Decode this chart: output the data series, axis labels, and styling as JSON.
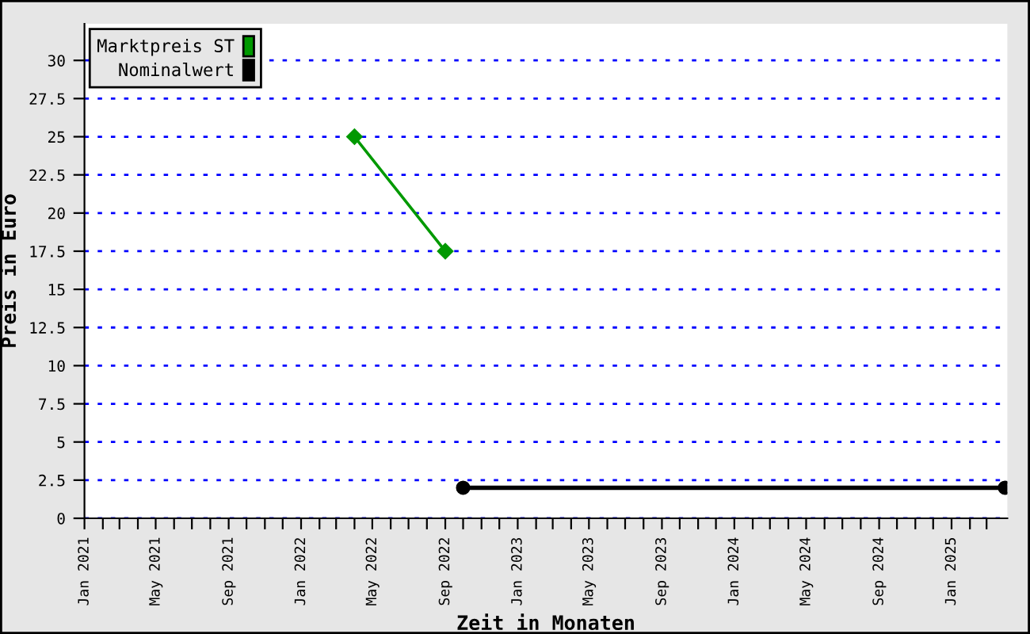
{
  "chart_data": {
    "type": "line",
    "xlabel": "Zeit in Monaten",
    "ylabel": "Preis in Euro",
    "series": [
      {
        "name": "Marktpreis ST",
        "color": "#009900",
        "x": [
          "2022-04-01",
          "2022-09-01"
        ],
        "values": [
          25,
          17.5
        ],
        "marker": "diamond"
      },
      {
        "name": "Nominalwert",
        "color": "#000000",
        "x": [
          "2022-10-01",
          "2025-04-01"
        ],
        "values": [
          2,
          2
        ],
        "marker": "circle"
      }
    ],
    "xlim": [
      "2021-01-01",
      "2025-04-05"
    ],
    "ylim": [
      0,
      32.4
    ],
    "yticks": [
      0,
      2.5,
      5,
      7.5,
      10,
      12.5,
      15,
      17.5,
      20,
      22.5,
      25,
      27.5,
      30
    ],
    "xticks": [
      {
        "value": "2021-01-01",
        "label": "Jan 2021"
      },
      {
        "value": "2021-02-01",
        "label": null
      },
      {
        "value": "2021-03-01",
        "label": null
      },
      {
        "value": "2021-04-01",
        "label": null
      },
      {
        "value": "2021-05-01",
        "label": "May 2021"
      },
      {
        "value": "2021-06-01",
        "label": null
      },
      {
        "value": "2021-07-01",
        "label": null
      },
      {
        "value": "2021-08-01",
        "label": null
      },
      {
        "value": "2021-09-01",
        "label": "Sep 2021"
      },
      {
        "value": "2021-10-01",
        "label": null
      },
      {
        "value": "2021-11-01",
        "label": null
      },
      {
        "value": "2021-12-01",
        "label": null
      },
      {
        "value": "2022-01-01",
        "label": "Jan 2022"
      },
      {
        "value": "2022-02-01",
        "label": null
      },
      {
        "value": "2022-03-01",
        "label": null
      },
      {
        "value": "2022-04-01",
        "label": null
      },
      {
        "value": "2022-05-01",
        "label": "May 2022"
      },
      {
        "value": "2022-06-01",
        "label": null
      },
      {
        "value": "2022-07-01",
        "label": null
      },
      {
        "value": "2022-08-01",
        "label": null
      },
      {
        "value": "2022-09-01",
        "label": "Sep 2022"
      },
      {
        "value": "2022-10-01",
        "label": null
      },
      {
        "value": "2022-11-01",
        "label": null
      },
      {
        "value": "2022-12-01",
        "label": null
      },
      {
        "value": "2023-01-01",
        "label": "Jan 2023"
      },
      {
        "value": "2023-02-01",
        "label": null
      },
      {
        "value": "2023-03-01",
        "label": null
      },
      {
        "value": "2023-04-01",
        "label": null
      },
      {
        "value": "2023-05-01",
        "label": "May 2023"
      },
      {
        "value": "2023-06-01",
        "label": null
      },
      {
        "value": "2023-07-01",
        "label": null
      },
      {
        "value": "2023-08-01",
        "label": null
      },
      {
        "value": "2023-09-01",
        "label": "Sep 2023"
      },
      {
        "value": "2023-10-01",
        "label": null
      },
      {
        "value": "2023-11-01",
        "label": null
      },
      {
        "value": "2023-12-01",
        "label": null
      },
      {
        "value": "2024-01-01",
        "label": "Jan 2024"
      },
      {
        "value": "2024-02-01",
        "label": null
      },
      {
        "value": "2024-03-01",
        "label": null
      },
      {
        "value": "2024-04-01",
        "label": null
      },
      {
        "value": "2024-05-01",
        "label": "May 2024"
      },
      {
        "value": "2024-06-01",
        "label": null
      },
      {
        "value": "2024-07-01",
        "label": null
      },
      {
        "value": "2024-08-01",
        "label": null
      },
      {
        "value": "2024-09-01",
        "label": "Sep 2024"
      },
      {
        "value": "2024-10-01",
        "label": null
      },
      {
        "value": "2024-11-01",
        "label": null
      },
      {
        "value": "2024-12-01",
        "label": null
      },
      {
        "value": "2025-01-01",
        "label": "Jan 2025"
      },
      {
        "value": "2025-02-01",
        "label": null
      },
      {
        "value": "2025-03-01",
        "label": null
      }
    ],
    "grid": "y",
    "legend": "top left",
    "line_style": "solid"
  }
}
